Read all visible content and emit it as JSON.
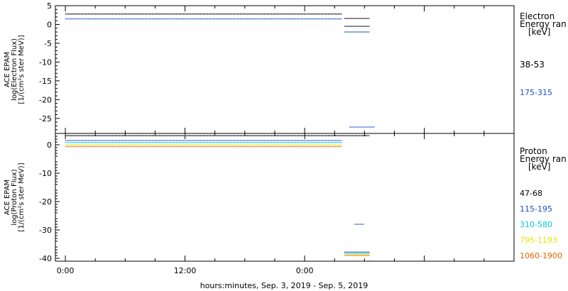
{
  "chart_data": [
    {
      "type": "scatter",
      "ylabel_lines": [
        "ACE EPAM",
        "log(Electron Flux)",
        "[1/(cm²s ster MeV)]"
      ],
      "ylim": [
        -29,
        5
      ],
      "yticks": [
        5,
        0,
        -5,
        -10,
        -15,
        -20,
        -25
      ],
      "legend_title": [
        "Electron",
        "Energy ran",
        "[keV]"
      ],
      "series": [
        {
          "name": "38-53",
          "color": "#000000",
          "segments": [
            {
              "x": [
                0,
                27.7
              ],
              "values": [
                2.8,
                2.8
              ]
            },
            {
              "x": [
                28.0,
                30.5
              ],
              "values": [
                1.6,
                1.6
              ]
            },
            {
              "x": [
                28.0,
                30.5
              ],
              "values": [
                -0.5,
                -0.5
              ]
            }
          ]
        },
        {
          "name": "175-315",
          "color": "#1a50c8",
          "segments": [
            {
              "x": [
                0,
                27.7
              ],
              "values": [
                1.5,
                1.5
              ]
            },
            {
              "x": [
                28.0,
                30.5
              ],
              "values": [
                -2.0,
                -2.0
              ]
            },
            {
              "x": [
                28.5,
                31.0
              ],
              "values": [
                -27.3,
                -27.3
              ]
            }
          ]
        }
      ]
    },
    {
      "type": "scatter",
      "ylabel_lines": [
        "ACE EPAM",
        "log(Proton Flux)",
        "[1/(cm²s ster MeV)]"
      ],
      "ylim": [
        -41,
        4
      ],
      "yticks": [
        0,
        -10,
        -20,
        -30,
        -40
      ],
      "legend_title": [
        "Proton",
        "Energy ran",
        "[keV]"
      ],
      "series": [
        {
          "name": "47-68",
          "color": "#000000",
          "segments": [
            {
              "x": [
                0,
                30.5
              ],
              "values": [
                3.2,
                3.2
              ]
            }
          ]
        },
        {
          "name": "115-195",
          "color": "#1a50c8",
          "segments": [
            {
              "x": [
                0,
                27.7
              ],
              "values": [
                1.5,
                1.5
              ]
            },
            {
              "x": [
                29.0,
                30.0
              ],
              "values": [
                -28.0,
                -28.0
              ]
            },
            {
              "x": [
                28.0,
                30.5
              ],
              "values": [
                -37.8,
                -37.8
              ]
            }
          ]
        },
        {
          "name": "310-580",
          "color": "#00c8dc",
          "segments": [
            {
              "x": [
                0,
                27.7
              ],
              "values": [
                0.8,
                0.8
              ]
            },
            {
              "x": [
                28.0,
                30.5
              ],
              "values": [
                -38.2,
                -38.2
              ]
            }
          ]
        },
        {
          "name": "795-1193",
          "color": "#e6e600",
          "segments": [
            {
              "x": [
                0,
                27.7
              ],
              "values": [
                0.0,
                0.0
              ]
            },
            {
              "x": [
                28.0,
                30.5
              ],
              "values": [
                -38.6,
                -38.6
              ]
            }
          ]
        },
        {
          "name": "1060-1900",
          "color": "#e66400",
          "segments": [
            {
              "x": [
                0,
                27.7
              ],
              "values": [
                -0.6,
                -0.6
              ]
            },
            {
              "x": [
                28.0,
                30.5
              ],
              "values": [
                -39.0,
                -39.0
              ]
            }
          ]
        }
      ]
    }
  ],
  "x_axis": {
    "range_hours": [
      -1,
      45
    ],
    "major_ticks": [
      {
        "hour": 0,
        "label": "0:00"
      },
      {
        "hour": 12,
        "label": "12:00"
      },
      {
        "hour": 24,
        "label": "0:00"
      }
    ],
    "xlabel": "hours:minutes, Sep.  3, 2019 - Sep.  5, 2019"
  }
}
